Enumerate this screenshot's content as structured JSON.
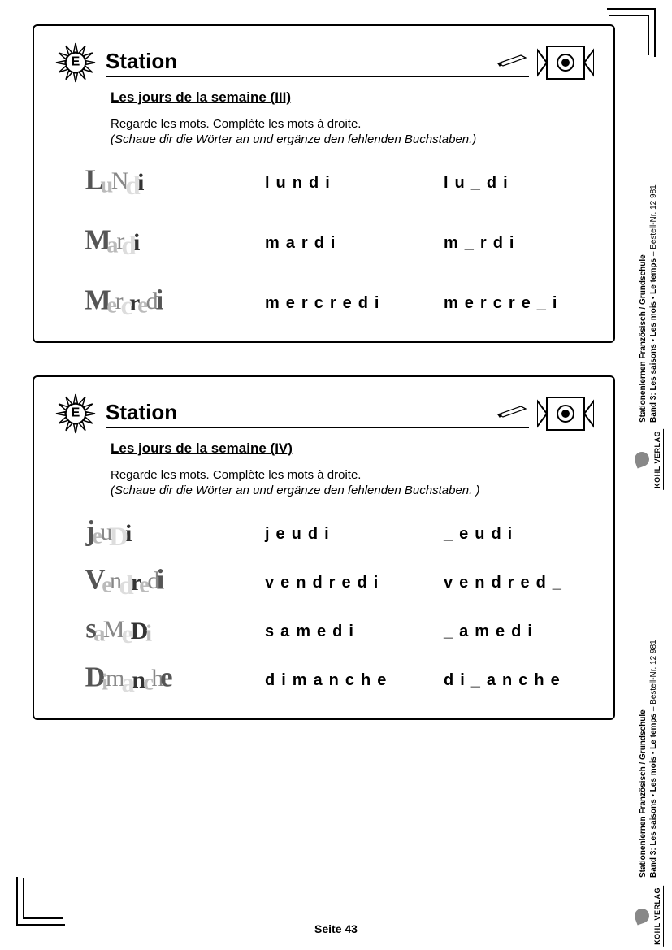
{
  "corner_glyph": "",
  "page_label": "Seite 43",
  "stations": [
    {
      "badge_letter": "E",
      "title": "Station",
      "subtitle": "Les jours de la semaine (III)",
      "instruction_fr": "Regarde les mots. Complète les mots à droite.",
      "instruction_de": "(Schaue dir die Wörter an und ergänze den fehlenden Buchstaben.)",
      "rows": [
        {
          "decor": "LuNdi",
          "plain": "lundi",
          "gap": "lu_di"
        },
        {
          "decor": "Mardi",
          "plain": "mardi",
          "gap": "m_rdi"
        },
        {
          "decor": "Mercredi",
          "plain": "mercredi",
          "gap": "mercre_i"
        }
      ]
    },
    {
      "badge_letter": "E",
      "title": "Station",
      "subtitle": "Les jours de la semaine (IV)",
      "instruction_fr": "Regarde les mots. Complète les mots à droite.",
      "instruction_de": "(Schaue dir die Wörter an und ergänze den fehlenden Buchstaben. )",
      "rows": [
        {
          "decor": "jeuDi",
          "plain": "jeudi",
          "gap": "_eudi"
        },
        {
          "decor": "Vendredi",
          "plain": "vendredi",
          "gap": "vendred_"
        },
        {
          "decor": "saMeDi",
          "plain": "samedi",
          "gap": "_amedi"
        },
        {
          "decor": "Dimanche",
          "plain": "dimanche",
          "gap": "di_anche"
        }
      ]
    }
  ],
  "sidebar": {
    "line1": "Stationenlernen Französisch / Grundschule",
    "line2": "Band 3: Les saisons • Les mois • Le temps",
    "order": "–   Bestell-Nr. 12 981",
    "publisher": "KOHL VERLAG"
  }
}
